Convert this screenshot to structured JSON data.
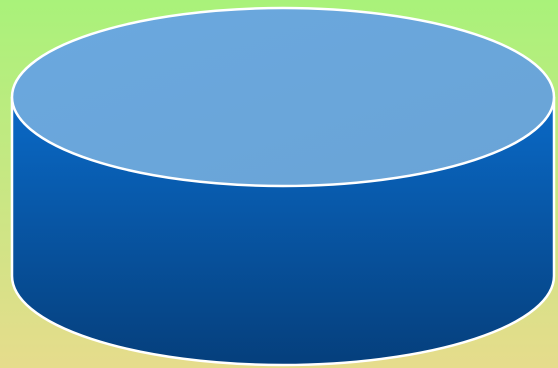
{
  "background": {
    "gradient_top_color": "#a9f27a",
    "gradient_bottom_color": "#e6dc8c"
  },
  "cylinder": {
    "shape": "cylinder",
    "body_gradient_top_color": "#0a6ac8",
    "body_gradient_bottom_color": "#053f7c",
    "top_gradient_color_a": "#6aa8df",
    "top_gradient_color_b": "#6aa4d6",
    "outline_color": "#ffffff"
  }
}
